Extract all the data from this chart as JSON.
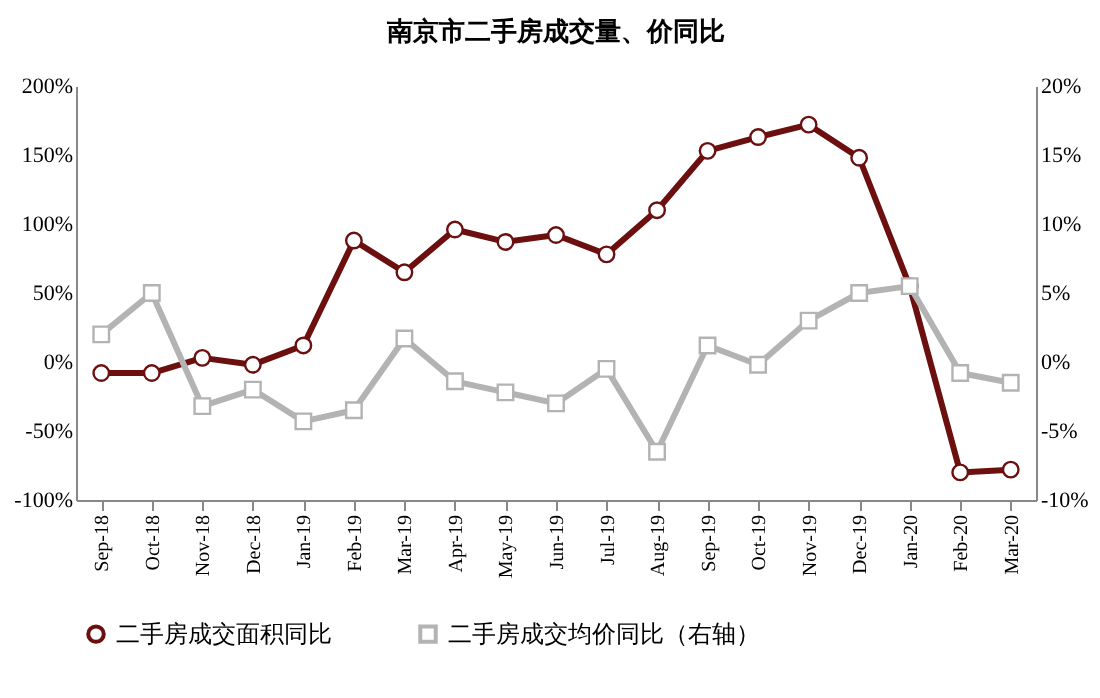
{
  "chart_data": {
    "type": "line",
    "title": "南京市二手房成交量、价同比",
    "categories": [
      "Sep-18",
      "Oct-18",
      "Nov-18",
      "Dec-18",
      "Jan-19",
      "Feb-19",
      "Mar-19",
      "Apr-19",
      "May-19",
      "Jun-19",
      "Jul-19",
      "Aug-19",
      "Sep-19",
      "Oct-19",
      "Nov-19",
      "Dec-19",
      "Jan-20",
      "Feb-20",
      "Mar-20"
    ],
    "series": [
      {
        "name": "二手房成交面积同比",
        "color": "#6b0f0f",
        "marker": "circle",
        "values": [
          -8,
          -8,
          3,
          -2,
          12,
          88,
          65,
          96,
          87,
          92,
          78,
          110,
          153,
          163,
          172,
          148,
          55,
          -80,
          -78
        ]
      },
      {
        "name": "二手房成交均价同比（右轴）",
        "color": "#b3b3b3",
        "marker": "square",
        "axis": "y2",
        "values": [
          2,
          5,
          -3.2,
          -2,
          -4.3,
          -3.5,
          1.7,
          -1.4,
          -2.2,
          -3,
          -0.5,
          -6.5,
          1.2,
          -0.2,
          3,
          5,
          5.5,
          -0.8,
          -1.5
        ]
      }
    ],
    "ylim": [
      -100,
      200
    ],
    "yticks": [
      {
        "value": -100,
        "label": "-100%"
      },
      {
        "value": -50,
        "label": "-50%"
      },
      {
        "value": 0,
        "label": "0%"
      },
      {
        "value": 50,
        "label": "50%"
      },
      {
        "value": 100,
        "label": "100%"
      },
      {
        "value": 150,
        "label": "150%"
      },
      {
        "value": 200,
        "label": "200%"
      }
    ],
    "y2lim": [
      -10,
      20
    ],
    "y2ticks": [
      {
        "value": -10,
        "label": "-10%"
      },
      {
        "value": -5,
        "label": "-5%"
      },
      {
        "value": 0,
        "label": "0%"
      },
      {
        "value": 5,
        "label": "5%"
      },
      {
        "value": 10,
        "label": "10%"
      },
      {
        "value": 15,
        "label": "15%"
      },
      {
        "value": 20,
        "label": "20%"
      }
    ],
    "grid": false,
    "legend": "bottom",
    "line_style": "solid"
  }
}
